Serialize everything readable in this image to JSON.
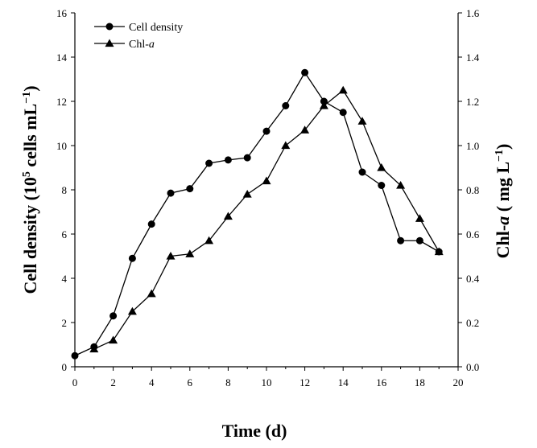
{
  "chart_data": {
    "type": "line",
    "title": "",
    "xlabel": "Time (d)",
    "ylabel_left": "Cell density (10^5 cells mL^-1)",
    "ylabel_right": "Chl-a ( mg L^-1)",
    "xlim": [
      0,
      20
    ],
    "ylim_left": [
      0,
      16
    ],
    "ylim_right": [
      0.0,
      1.6
    ],
    "x_ticks": [
      "0",
      "2",
      "4",
      "6",
      "8",
      "10",
      "12",
      "14",
      "16",
      "18",
      "20"
    ],
    "y_left_ticks": [
      "0",
      "2",
      "4",
      "6",
      "8",
      "10",
      "12",
      "14",
      "16"
    ],
    "y_right_ticks": [
      "0.0",
      "0.2",
      "0.4",
      "0.6",
      "0.8",
      "1.0",
      "1.2",
      "1.4",
      "1.6"
    ],
    "grid": false,
    "legend_placement": "top-left",
    "series": [
      {
        "name": "Cell density",
        "marker": "circle",
        "axis": "left",
        "x": [
          0,
          1,
          2,
          3,
          4,
          5,
          6,
          7,
          8,
          9,
          10,
          11,
          12,
          13,
          14,
          15,
          16,
          17,
          18,
          19
        ],
        "values": [
          0.5,
          0.9,
          2.3,
          4.9,
          6.45,
          7.85,
          8.05,
          9.2,
          9.35,
          9.45,
          10.65,
          11.8,
          13.3,
          12.0,
          11.5,
          8.8,
          8.2,
          5.7,
          5.7,
          5.2
        ]
      },
      {
        "name": "Chl-a",
        "marker": "triangle",
        "axis": "right",
        "x": [
          1,
          2,
          3,
          4,
          5,
          6,
          7,
          8,
          9,
          10,
          11,
          12,
          13,
          14,
          15,
          16,
          17,
          18,
          19
        ],
        "values": [
          0.08,
          0.12,
          0.25,
          0.33,
          0.5,
          0.51,
          0.57,
          0.68,
          0.78,
          0.84,
          1.0,
          1.07,
          1.18,
          1.25,
          1.11,
          0.9,
          0.82,
          0.67,
          0.52
        ]
      }
    ]
  }
}
